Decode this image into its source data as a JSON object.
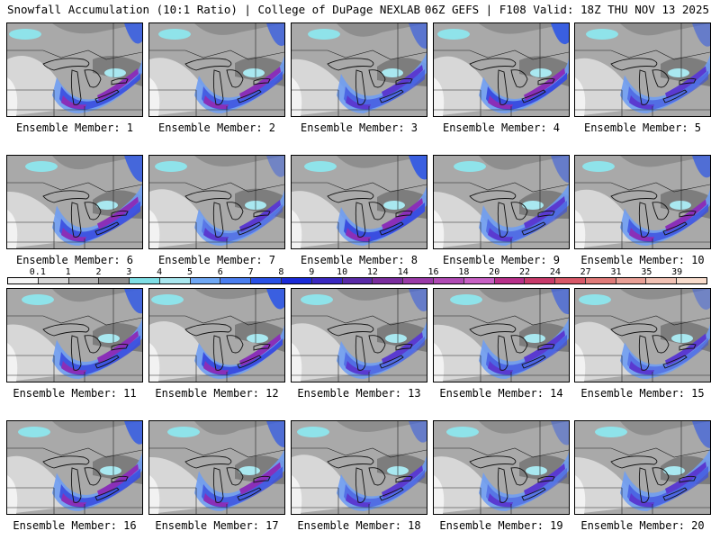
{
  "header": {
    "title_left": "Snowfall Accumulation (10:1 Ratio) | College of DuPage NEXLAB",
    "title_right": "06Z GEFS | F108 Valid: 18Z THU NOV 13 2025"
  },
  "colorbar": {
    "ticks": [
      "0.1",
      "1",
      "2",
      "3",
      "4",
      "5",
      "6",
      "7",
      "8",
      "9",
      "10",
      "12",
      "14",
      "16",
      "18",
      "20",
      "22",
      "24",
      "27",
      "31",
      "35",
      "39"
    ],
    "colors": [
      "#f4f4f4",
      "#d6d6d6",
      "#b5b5b5",
      "#8f8f8f",
      "#7fdfe6",
      "#a9e8f0",
      "#6fa8f5",
      "#4a7ef0",
      "#2850e6",
      "#1a2ad8",
      "#3a28c0",
      "#5a2aa8",
      "#7a2c9e",
      "#9a3aa8",
      "#b04ab4",
      "#c860c4",
      "#b8308a",
      "#c83a6a",
      "#d85868",
      "#e07a78",
      "#eaa096",
      "#f2c2b4",
      "#f8dccc"
    ]
  },
  "panels": [
    {
      "label": "Ensemble Member: 1"
    },
    {
      "label": "Ensemble Member: 2"
    },
    {
      "label": "Ensemble Member: 3"
    },
    {
      "label": "Ensemble Member: 4"
    },
    {
      "label": "Ensemble Member: 5"
    },
    {
      "label": "Ensemble Member: 6"
    },
    {
      "label": "Ensemble Member: 7"
    },
    {
      "label": "Ensemble Member: 8"
    },
    {
      "label": "Ensemble Member: 9"
    },
    {
      "label": "Ensemble Member: 10"
    },
    {
      "label": "Ensemble Member: 11"
    },
    {
      "label": "Ensemble Member: 12"
    },
    {
      "label": "Ensemble Member: 13"
    },
    {
      "label": "Ensemble Member: 14"
    },
    {
      "label": "Ensemble Member: 15"
    },
    {
      "label": "Ensemble Member: 16"
    },
    {
      "label": "Ensemble Member: 17"
    },
    {
      "label": "Ensemble Member: 18"
    },
    {
      "label": "Ensemble Member: 19"
    },
    {
      "label": "Ensemble Member: 20"
    }
  ]
}
